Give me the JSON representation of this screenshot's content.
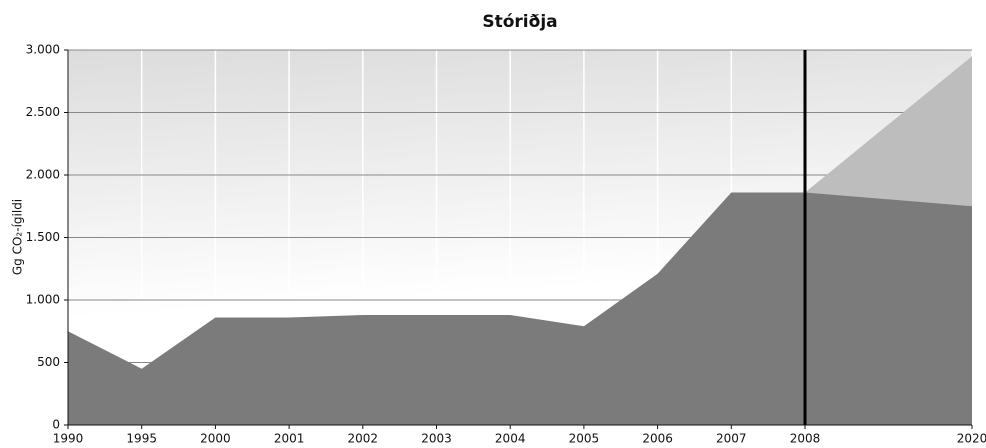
{
  "chart_data": {
    "type": "area",
    "title": "Stóriðja",
    "y_label": "Gg CO₂-ígildi",
    "categories": [
      "1990",
      "1995",
      "2000",
      "2001",
      "2002",
      "2003",
      "2004",
      "2005",
      "2006",
      "2007",
      "2008",
      "2020"
    ],
    "series": [
      {
        "color": "#7b7b7b",
        "values": [
          750,
          450,
          860,
          860,
          880,
          880,
          880,
          790,
          1210,
          1860,
          1860,
          1750
        ]
      },
      {
        "color": "#bdbdbd",
        "values": [
          null,
          null,
          null,
          null,
          null,
          null,
          null,
          null,
          null,
          null,
          1860,
          2950
        ]
      }
    ],
    "ylim": [
      0,
      3000
    ],
    "yticks": [
      0,
      500,
      {
        "value": 1000,
        "label": "1.000"
      },
      {
        "value": 1500,
        "label": "1.500"
      },
      {
        "value": 2000,
        "label": "2.000"
      },
      {
        "value": 2500,
        "label": "2.500"
      },
      {
        "value": 3000,
        "label": "3.000"
      }
    ],
    "grid": true
  }
}
